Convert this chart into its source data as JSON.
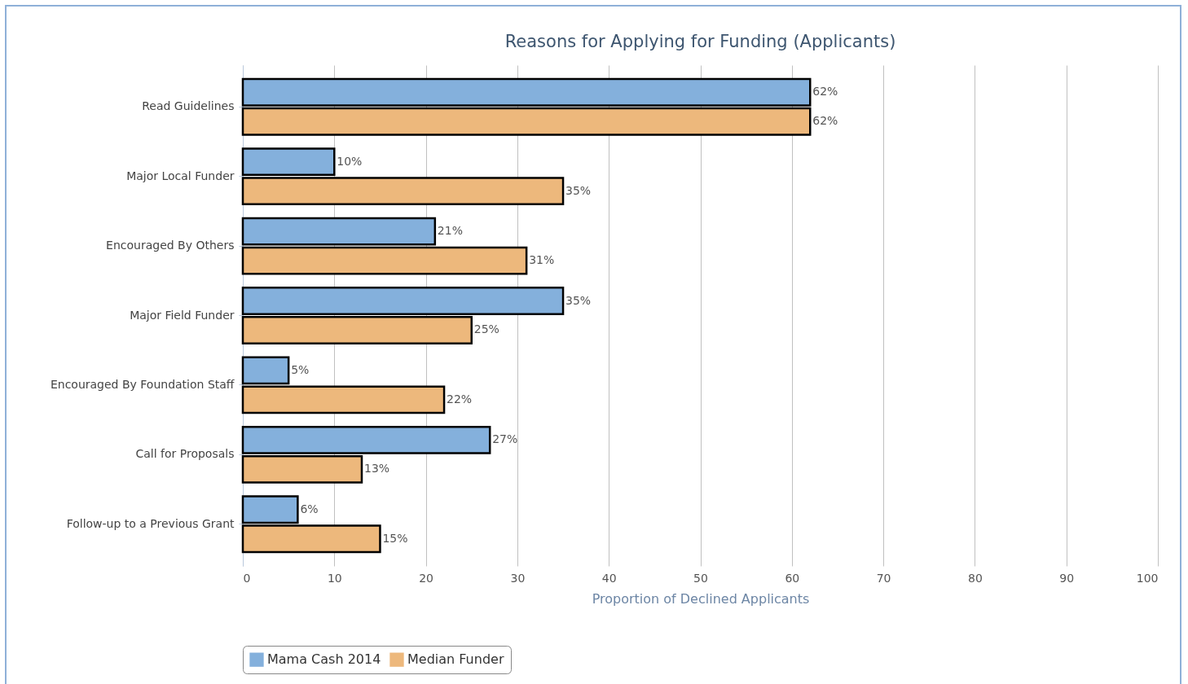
{
  "chart_data": {
    "type": "bar",
    "orientation": "horizontal",
    "title": "Reasons for Applying for Funding (Applicants)",
    "xlabel": "Proportion of Declined Applicants",
    "categories": [
      "Read Guidelines",
      "Major Local Funder",
      "Encouraged By Others",
      "Major Field Funder",
      "Encouraged By Foundation Staff",
      "Call for Proposals",
      "Follow-up to a Previous Grant"
    ],
    "series": [
      {
        "name": "Mama Cash 2014",
        "color": "#84b0dc",
        "values": [
          62,
          10,
          21,
          35,
          5,
          27,
          6
        ],
        "value_labels": [
          "62%",
          "10%",
          "21%",
          "35%",
          "5%",
          "27%",
          "6%"
        ]
      },
      {
        "name": "Median Funder",
        "color": "#edb87c",
        "values": [
          62,
          35,
          31,
          25,
          22,
          13,
          15
        ],
        "value_labels": [
          "62%",
          "35%",
          "31%",
          "25%",
          "22%",
          "13%",
          "15%"
        ]
      }
    ],
    "xlim": [
      0,
      100
    ],
    "xticks": [
      0,
      10,
      20,
      30,
      40,
      50,
      60,
      70,
      80,
      90,
      100
    ],
    "grid": "x",
    "legend": "bottom"
  }
}
